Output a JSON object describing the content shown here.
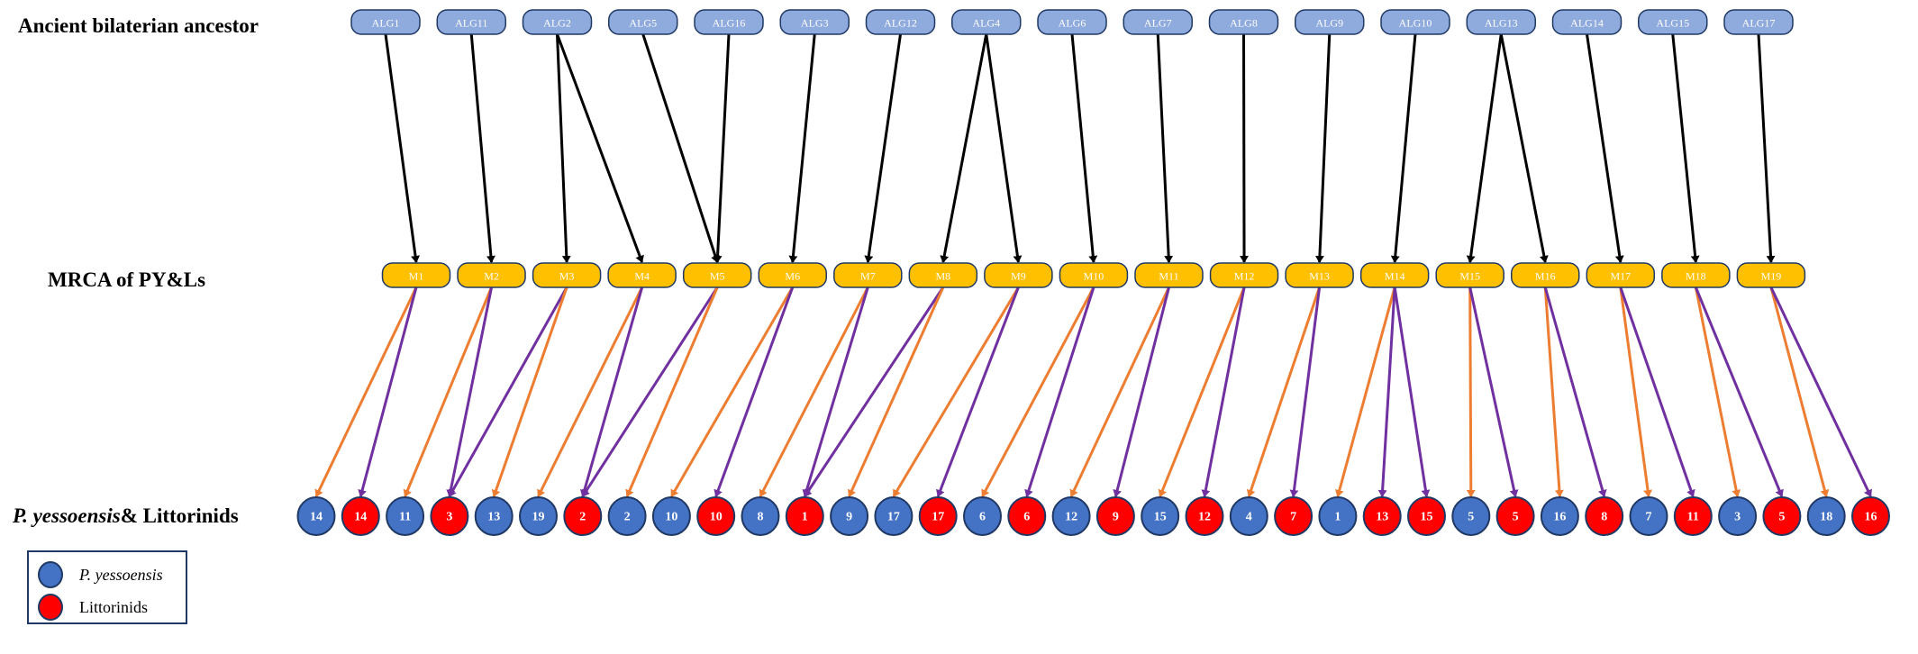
{
  "row_labels": {
    "ancestor": "Ancient bilaterian ancestor",
    "mrca": "MRCA of PY&Ls",
    "species_italic": "P. yessoensis",
    "species_rest": "& Littorinids"
  },
  "colors": {
    "alg_fill": "#8faadc",
    "mrca_fill": "#ffc000",
    "node_border": "#1f3864",
    "p_yessoensis": "#4472c4",
    "littorinids": "#ff0000",
    "edge_ancestral": "#000000",
    "edge_to_p_yessoensis": "#ed7d31",
    "edge_to_littorinids": "#7030a0"
  },
  "alg_nodes": [
    "ALG1",
    "ALG11",
    "ALG2",
    "ALG5",
    "ALG16",
    "ALG3",
    "ALG12",
    "ALG4",
    "ALG6",
    "ALG7",
    "ALG8",
    "ALG9",
    "ALG10",
    "ALG13",
    "ALG14",
    "ALG15",
    "ALG17"
  ],
  "mrca_nodes": [
    "M1",
    "M2",
    "M3",
    "M4",
    "M5",
    "M6",
    "M7",
    "M8",
    "M9",
    "M10",
    "M11",
    "M12",
    "M13",
    "M14",
    "M15",
    "M16",
    "M17",
    "M18",
    "M19"
  ],
  "chromosomes": [
    {
      "label": "14",
      "species": "py"
    },
    {
      "label": "14",
      "species": "lit"
    },
    {
      "label": "11",
      "species": "py"
    },
    {
      "label": "3",
      "species": "lit"
    },
    {
      "label": "13",
      "species": "py"
    },
    {
      "label": "19",
      "species": "py"
    },
    {
      "label": "2",
      "species": "lit"
    },
    {
      "label": "2",
      "species": "py"
    },
    {
      "label": "10",
      "species": "py"
    },
    {
      "label": "10",
      "species": "lit"
    },
    {
      "label": "8",
      "species": "py"
    },
    {
      "label": "1",
      "species": "lit"
    },
    {
      "label": "9",
      "species": "py"
    },
    {
      "label": "17",
      "species": "py"
    },
    {
      "label": "17",
      "species": "lit"
    },
    {
      "label": "6",
      "species": "py"
    },
    {
      "label": "6",
      "species": "lit"
    },
    {
      "label": "12",
      "species": "py"
    },
    {
      "label": "9",
      "species": "lit"
    },
    {
      "label": "15",
      "species": "py"
    },
    {
      "label": "12",
      "species": "lit"
    },
    {
      "label": "4",
      "species": "py"
    },
    {
      "label": "7",
      "species": "lit"
    },
    {
      "label": "1",
      "species": "py"
    },
    {
      "label": "13",
      "species": "lit"
    },
    {
      "label": "15",
      "species": "lit"
    },
    {
      "label": "5",
      "species": "py"
    },
    {
      "label": "5",
      "species": "lit"
    },
    {
      "label": "16",
      "species": "py"
    },
    {
      "label": "8",
      "species": "lit"
    },
    {
      "label": "7",
      "species": "py"
    },
    {
      "label": "11",
      "species": "lit"
    },
    {
      "label": "3",
      "species": "py"
    },
    {
      "label": "5",
      "species": "lit"
    },
    {
      "label": "18",
      "species": "py"
    },
    {
      "label": "16",
      "species": "lit"
    }
  ],
  "alg_to_mrca": [
    [
      "ALG1",
      "M1"
    ],
    [
      "ALG11",
      "M2"
    ],
    [
      "ALG2",
      "M3"
    ],
    [
      "ALG2",
      "M4"
    ],
    [
      "ALG5",
      "M5"
    ],
    [
      "ALG16",
      "M5"
    ],
    [
      "ALG3",
      "M6"
    ],
    [
      "ALG12",
      "M7"
    ],
    [
      "ALG4",
      "M8"
    ],
    [
      "ALG4",
      "M9"
    ],
    [
      "ALG6",
      "M10"
    ],
    [
      "ALG7",
      "M11"
    ],
    [
      "ALG8",
      "M12"
    ],
    [
      "ALG9",
      "M13"
    ],
    [
      "ALG10",
      "M14"
    ],
    [
      "ALG13",
      "M15"
    ],
    [
      "ALG13",
      "M16"
    ],
    [
      "ALG14",
      "M17"
    ],
    [
      "ALG15",
      "M18"
    ],
    [
      "ALG17",
      "M19"
    ]
  ],
  "mrca_to_chromosome": [
    [
      "M1",
      0
    ],
    [
      "M1",
      1
    ],
    [
      "M2",
      2
    ],
    [
      "M2",
      3
    ],
    [
      "M3",
      3
    ],
    [
      "M3",
      4
    ],
    [
      "M4",
      5
    ],
    [
      "M4",
      6
    ],
    [
      "M5",
      6
    ],
    [
      "M5",
      7
    ],
    [
      "M6",
      8
    ],
    [
      "M6",
      9
    ],
    [
      "M7",
      10
    ],
    [
      "M7",
      11
    ],
    [
      "M8",
      11
    ],
    [
      "M8",
      12
    ],
    [
      "M9",
      13
    ],
    [
      "M9",
      14
    ],
    [
      "M10",
      15
    ],
    [
      "M10",
      16
    ],
    [
      "M11",
      17
    ],
    [
      "M11",
      18
    ],
    [
      "M12",
      19
    ],
    [
      "M12",
      20
    ],
    [
      "M13",
      21
    ],
    [
      "M13",
      22
    ],
    [
      "M14",
      23
    ],
    [
      "M14",
      24
    ],
    [
      "M14",
      25
    ],
    [
      "M15",
      26
    ],
    [
      "M15",
      27
    ],
    [
      "M16",
      28
    ],
    [
      "M16",
      29
    ],
    [
      "M17",
      30
    ],
    [
      "M17",
      31
    ],
    [
      "M18",
      32
    ],
    [
      "M18",
      33
    ],
    [
      "M19",
      34
    ],
    [
      "M19",
      35
    ]
  ],
  "legend": {
    "p_yessoensis": "P. yessoensis",
    "littorinids": "Littorinids"
  }
}
